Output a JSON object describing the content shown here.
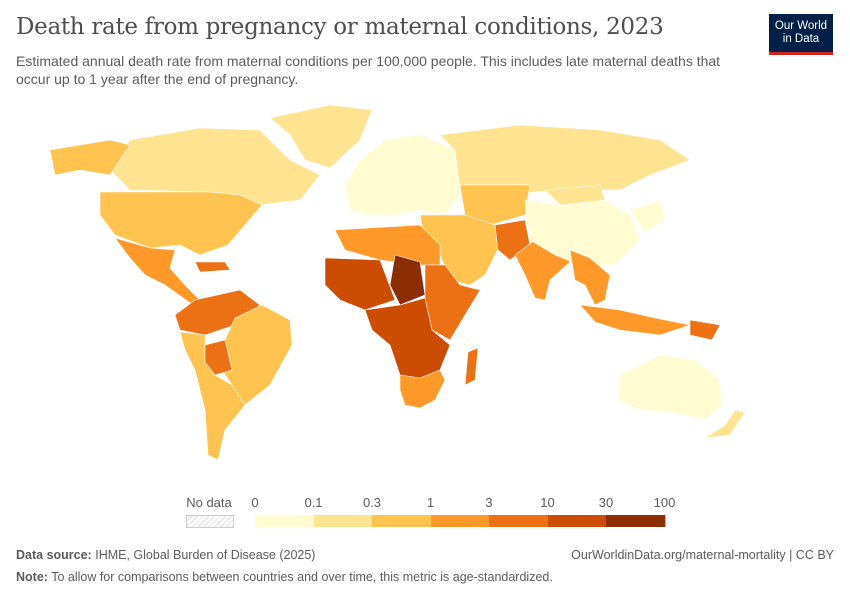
{
  "title": "Death rate from pregnancy or maternal conditions, 2023",
  "subtitle": "Estimated annual death rate from maternal conditions per 100,000 people. This includes late maternal deaths that occur up to 1 year after the end of pregnancy.",
  "logo": {
    "line1": "Our World",
    "line2": "in Data"
  },
  "legend": {
    "no_data_label": "No data",
    "ticks": [
      "0",
      "0.1",
      "0.3",
      "1",
      "3",
      "10",
      "30",
      "100"
    ],
    "colors": [
      "#fefcd0",
      "#fee391",
      "#fec44f",
      "#fe9929",
      "#ec7014",
      "#cc4c02",
      "#8c2d04"
    ],
    "no_data_color": "#dddddd"
  },
  "map_regions": [
    {
      "name": "greenland",
      "bin": 1
    },
    {
      "name": "canada",
      "bin": 1
    },
    {
      "name": "alaska",
      "bin": 2
    },
    {
      "name": "united-states",
      "bin": 2
    },
    {
      "name": "mexico-central-america",
      "bin": 3
    },
    {
      "name": "caribbean",
      "bin": 4
    },
    {
      "name": "northern-south-america",
      "bin": 4
    },
    {
      "name": "brazil",
      "bin": 2
    },
    {
      "name": "southern-south-america",
      "bin": 2
    },
    {
      "name": "bolivia",
      "bin": 4
    },
    {
      "name": "europe",
      "bin": 0
    },
    {
      "name": "russia",
      "bin": 1
    },
    {
      "name": "central-asia",
      "bin": 2
    },
    {
      "name": "middle-east",
      "bin": 2
    },
    {
      "name": "north-africa",
      "bin": 3
    },
    {
      "name": "west-africa",
      "bin": 5
    },
    {
      "name": "sahel-chad",
      "bin": 6
    },
    {
      "name": "east-africa",
      "bin": 4
    },
    {
      "name": "central-africa",
      "bin": 5
    },
    {
      "name": "southern-africa",
      "bin": 3
    },
    {
      "name": "madagascar",
      "bin": 4
    },
    {
      "name": "pakistan-afghanistan",
      "bin": 4
    },
    {
      "name": "india",
      "bin": 3
    },
    {
      "name": "china",
      "bin": 0
    },
    {
      "name": "mongolia",
      "bin": 1
    },
    {
      "name": "southeast-asia",
      "bin": 3
    },
    {
      "name": "indonesia",
      "bin": 3
    },
    {
      "name": "papua-new-guinea",
      "bin": 4
    },
    {
      "name": "japan-korea",
      "bin": 0
    },
    {
      "name": "australia",
      "bin": 0
    },
    {
      "name": "new-zealand",
      "bin": 1
    }
  ],
  "footer": {
    "source_label": "Data source:",
    "source": "IHME, Global Burden of Disease (2025)",
    "url": "OurWorldinData.org/maternal-mortality | CC BY",
    "note_label": "Note:",
    "note": "To allow for comparisons between countries and over time, this metric is age-standardized."
  }
}
